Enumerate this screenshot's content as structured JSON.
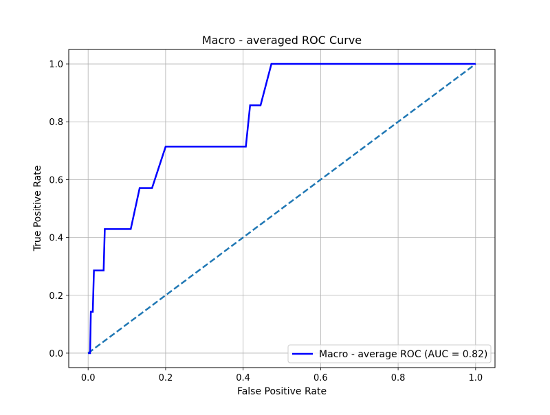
{
  "chart_data": {
    "type": "line",
    "title": "Macro - averaged ROC Curve",
    "xlabel": "False Positive Rate",
    "ylabel": "True Positive Rate",
    "xlim": [
      -0.05,
      1.05
    ],
    "ylim": [
      -0.05,
      1.05
    ],
    "xticks": [
      0.0,
      0.2,
      0.4,
      0.6,
      0.8,
      1.0
    ],
    "yticks": [
      0.0,
      0.2,
      0.4,
      0.6,
      0.8,
      1.0
    ],
    "xtick_labels": [
      "0.0",
      "0.2",
      "0.4",
      "0.6",
      "0.8",
      "1.0"
    ],
    "ytick_labels": [
      "0.0",
      "0.2",
      "0.4",
      "0.6",
      "0.8",
      "1.0"
    ],
    "grid": true,
    "legend_position": "lower right",
    "series": [
      {
        "name": "Macro - average ROC (AUC = 0.82)",
        "color": "#0000ff",
        "style": "solid",
        "x": [
          0.0,
          0.005,
          0.007,
          0.012,
          0.015,
          0.04,
          0.043,
          0.11,
          0.133,
          0.165,
          0.2,
          0.407,
          0.418,
          0.445,
          0.473,
          1.0
        ],
        "y": [
          0.0,
          0.0,
          0.143,
          0.143,
          0.286,
          0.286,
          0.429,
          0.429,
          0.571,
          0.571,
          0.714,
          0.714,
          0.857,
          0.857,
          1.0,
          1.0
        ]
      },
      {
        "name": "",
        "color": "#1f77b4",
        "style": "dashed",
        "x": [
          0.0,
          1.0
        ],
        "y": [
          0.0,
          1.0
        ]
      }
    ]
  }
}
